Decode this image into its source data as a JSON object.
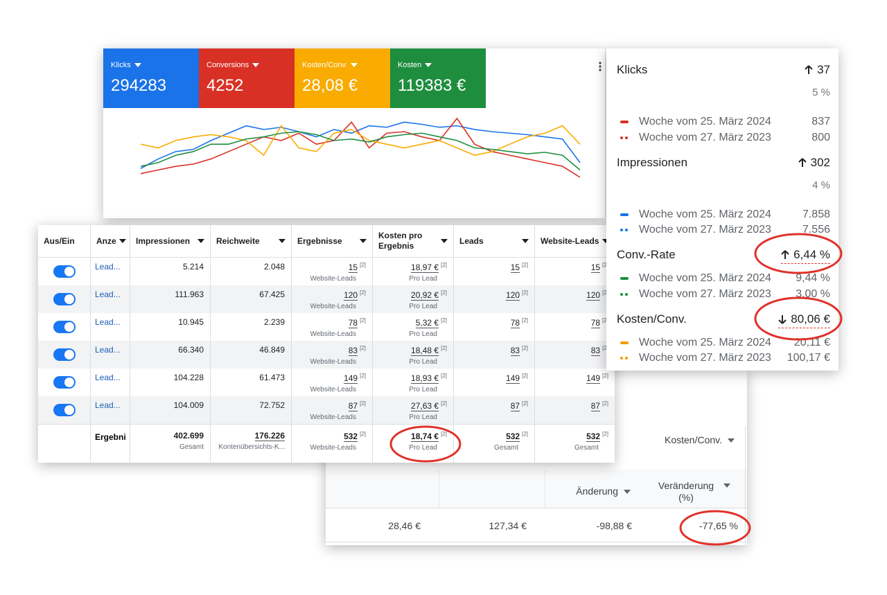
{
  "chart_data": {
    "type": "line",
    "series": [
      {
        "name": "Klicks",
        "total": "294283",
        "color": "#1a73e8",
        "values": [
          22,
          35,
          45,
          48,
          60,
          70,
          80,
          75,
          78,
          72,
          65,
          75,
          70,
          80,
          78,
          85,
          82,
          78,
          80,
          75,
          72,
          70,
          68,
          65,
          62,
          30
        ]
      },
      {
        "name": "Conversions",
        "total": "4252",
        "color": "#d93025",
        "values": [
          15,
          20,
          25,
          28,
          35,
          45,
          55,
          65,
          60,
          70,
          55,
          60,
          85,
          50,
          70,
          72,
          65,
          60,
          90,
          55,
          45,
          40,
          35,
          30,
          25,
          10
        ]
      },
      {
        "name": "Kosten/Conv.",
        "total": "28,08 €",
        "color": "#f9ab00",
        "values": [
          55,
          50,
          60,
          65,
          68,
          65,
          60,
          40,
          80,
          50,
          45,
          70,
          75,
          60,
          55,
          50,
          55,
          60,
          50,
          40,
          45,
          55,
          65,
          70,
          80,
          55
        ]
      },
      {
        "name": "Kosten",
        "total": "119383 €",
        "color": "#1e8e3e",
        "values": [
          25,
          30,
          40,
          45,
          55,
          55,
          62,
          65,
          70,
          72,
          68,
          60,
          62,
          58,
          65,
          68,
          70,
          65,
          60,
          50,
          48,
          45,
          42,
          44,
          40,
          20
        ]
      }
    ]
  },
  "table": {
    "columns": [
      "Aus/Ein",
      "Anze",
      "Impressionen",
      "Reichweite",
      "Ergebnisse",
      "Kosten pro Ergebnis",
      "Leads",
      "Website-Leads"
    ],
    "note": "[2]",
    "result_unit": "Website-Leads",
    "cost_unit": "Pro Lead",
    "rows": [
      {
        "name": "Lead...",
        "impressions": "5.214",
        "reach": "2.048",
        "results": "15",
        "cost": "18,97 €",
        "leads": "15",
        "website_leads": "15"
      },
      {
        "name": "Lead...",
        "impressions": "111.963",
        "reach": "67.425",
        "results": "120",
        "cost": "20,92 €",
        "leads": "120",
        "website_leads": "120"
      },
      {
        "name": "Lead...",
        "impressions": "10.945",
        "reach": "2.239",
        "results": "78",
        "cost": "5,32 €",
        "leads": "78",
        "website_leads": "78"
      },
      {
        "name": "Lead...",
        "impressions": "66.340",
        "reach": "46.849",
        "results": "83",
        "cost": "18,48 €",
        "leads": "83",
        "website_leads": "83"
      },
      {
        "name": "Lead...",
        "impressions": "104.228",
        "reach": "61.473",
        "results": "149",
        "cost": "18,93 €",
        "leads": "149",
        "website_leads": "149"
      },
      {
        "name": "Lead...",
        "impressions": "104.009",
        "reach": "72.752",
        "results": "87",
        "cost": "27,63 €",
        "leads": "87",
        "website_leads": "87"
      }
    ],
    "footer": {
      "name": "Ergebni",
      "impressions": "402.699",
      "impressions_sub": "Gesamt",
      "reach": "176.226",
      "reach_sub": "Kontenübersichts-K...",
      "results": "532",
      "results_sub": "Website-Leads",
      "cost": "18,74 €",
      "cost_sub": "Pro Lead",
      "leads": "532",
      "leads_sub": "Gesamt",
      "website_leads": "532",
      "website_leads_sub": "Gesamt"
    }
  },
  "summary": {
    "metrics": [
      {
        "label": "Klicks",
        "trend": "up",
        "change": "37",
        "percent": "5 %",
        "color": "#d93025",
        "rows": [
          {
            "label": "Woche vom 25. März 2024",
            "value": "837"
          },
          {
            "label": "Woche vom 27. März 2023",
            "value": "800"
          }
        ]
      },
      {
        "label": "Impressionen",
        "trend": "up",
        "change": "302",
        "percent": "4 %",
        "color": "#1a73e8",
        "rows": [
          {
            "label": "Woche vom 25. März 2024",
            "value": "7.858"
          },
          {
            "label": "Woche vom 27. März 2023",
            "value": "7.556"
          }
        ]
      },
      {
        "label": "Conv.-Rate",
        "trend": "up",
        "change": "6,44 %",
        "color": "#1e8e3e",
        "highlight": true,
        "rows": [
          {
            "label": "Woche vom 25. März 2024",
            "value": "9,44 %"
          },
          {
            "label": "Woche vom 27. März 2023",
            "value": "3,00 %"
          }
        ]
      },
      {
        "label": "Kosten/Conv.",
        "trend": "down",
        "change": "80,06 €",
        "color": "#f29900",
        "highlight": true,
        "rows": [
          {
            "label": "Woche vom 25. März 2024",
            "value": "20,11 €"
          },
          {
            "label": "Woche vom 27. März 2023",
            "value": "100,17 €"
          }
        ]
      }
    ]
  },
  "comparison": {
    "header": "Kosten/Conv.",
    "columns": [
      "Änderung",
      "Veränderung (%)"
    ],
    "row": [
      "28,46 €",
      "127,34 €",
      "-98,88 €",
      "-77,65 %"
    ]
  }
}
